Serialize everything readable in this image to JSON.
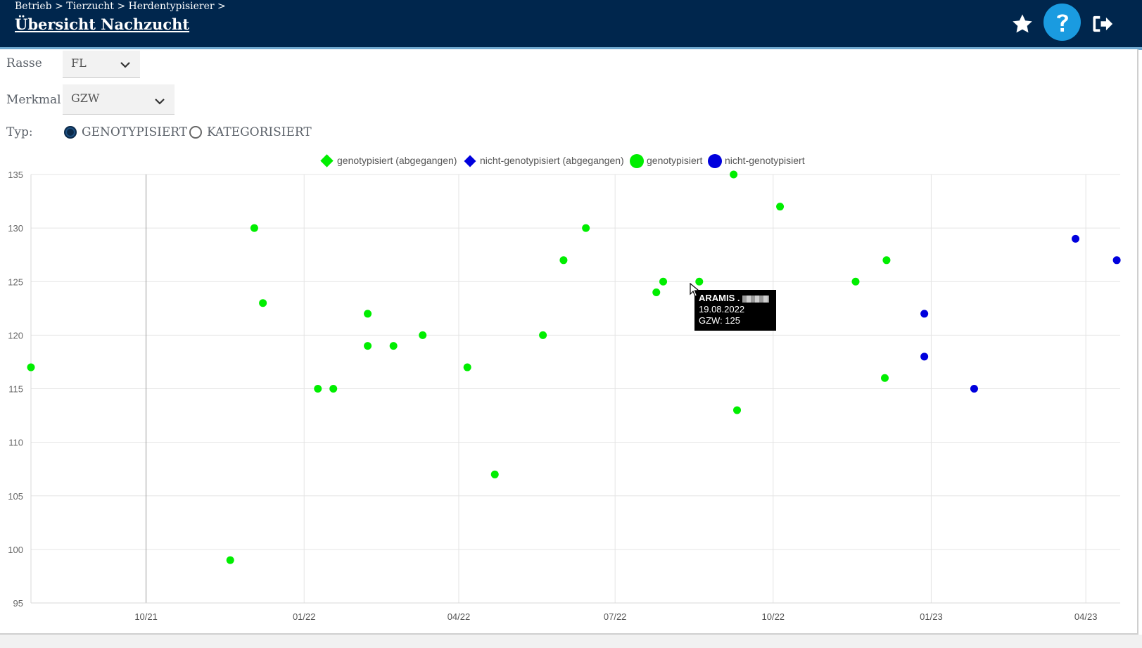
{
  "header": {
    "breadcrumb": "Betrieb > Tierzucht > Herdentypisierer >",
    "title": "Übersicht Nachzucht",
    "icons": [
      "star-icon",
      "help-icon",
      "logout-icon"
    ]
  },
  "filters": {
    "rasse_label": "Rasse",
    "rasse_value": "FL",
    "merkmal_label": "Merkmal",
    "merkmal_value": "GZW",
    "typ_label": "Typ:",
    "typ_options": [
      "GENOTYPISIERT",
      "KATEGORISIERT"
    ],
    "typ_selected": "GENOTYPISIERT"
  },
  "colors": {
    "header_bg": "#00264d",
    "genotyped": "#00ee00",
    "not_genotyped": "#0000dd",
    "radio_selected": "#0b2a4a"
  },
  "tooltip": {
    "name": "ARAMIS .",
    "date": "19.08.2022",
    "value_text": "GZW: 125"
  },
  "chart_data": {
    "type": "scatter",
    "title": "",
    "xlabel": "",
    "ylabel": "",
    "ylim": [
      95,
      135
    ],
    "xlim": [
      "2021-07-26",
      "2023-04-21"
    ],
    "yticks": [
      95,
      100,
      105,
      110,
      115,
      120,
      125,
      130,
      135
    ],
    "xticks": [
      {
        "date": "2021-10-01",
        "label": "10/21"
      },
      {
        "date": "2022-01-01",
        "label": "01/22"
      },
      {
        "date": "2022-04-01",
        "label": "04/22"
      },
      {
        "date": "2022-07-01",
        "label": "07/22"
      },
      {
        "date": "2022-10-01",
        "label": "10/22"
      },
      {
        "date": "2023-01-01",
        "label": "01/23"
      },
      {
        "date": "2023-04-01",
        "label": "04/23"
      }
    ],
    "grid": true,
    "legend_position": "top",
    "legend": [
      {
        "label": "genotypisiert (abgegangen)",
        "shape": "diamond",
        "color": "#00ee00"
      },
      {
        "label": "nicht-genotypisiert (abgegangen)",
        "shape": "diamond",
        "color": "#0000dd"
      },
      {
        "label": "genotypisiert",
        "shape": "circle",
        "color": "#00ee00"
      },
      {
        "label": "nicht-genotypisiert",
        "shape": "circle",
        "color": "#0000dd"
      }
    ],
    "series": [
      {
        "name": "genotypisiert (abgegangen)",
        "points": []
      },
      {
        "name": "nicht-genotypisiert (abgegangen)",
        "points": []
      },
      {
        "name": "genotypisiert",
        "points": [
          {
            "x": "2021-07-26",
            "y": 117
          },
          {
            "x": "2021-11-19",
            "y": 99
          },
          {
            "x": "2021-12-08",
            "y": 123
          },
          {
            "x": "2021-12-03",
            "y": 130
          },
          {
            "x": "2022-01-09",
            "y": 115
          },
          {
            "x": "2022-01-18",
            "y": 115
          },
          {
            "x": "2022-02-07",
            "y": 122
          },
          {
            "x": "2022-02-07",
            "y": 119
          },
          {
            "x": "2022-02-22",
            "y": 119
          },
          {
            "x": "2022-03-11",
            "y": 120
          },
          {
            "x": "2022-04-06",
            "y": 117
          },
          {
            "x": "2022-04-22",
            "y": 107
          },
          {
            "x": "2022-05-20",
            "y": 120
          },
          {
            "x": "2022-06-01",
            "y": 127
          },
          {
            "x": "2022-06-14",
            "y": 130
          },
          {
            "x": "2022-07-25",
            "y": 124
          },
          {
            "x": "2022-07-29",
            "y": 125
          },
          {
            "x": "2022-08-19",
            "y": 125
          },
          {
            "x": "2022-09-08",
            "y": 135
          },
          {
            "x": "2022-09-10",
            "y": 113
          },
          {
            "x": "2022-10-05",
            "y": 132
          },
          {
            "x": "2022-11-18",
            "y": 125
          },
          {
            "x": "2022-12-05",
            "y": 116
          },
          {
            "x": "2022-12-06",
            "y": 127
          }
        ]
      },
      {
        "name": "nicht-genotypisiert",
        "points": [
          {
            "x": "2022-12-28",
            "y": 122
          },
          {
            "x": "2022-12-28",
            "y": 118
          },
          {
            "x": "2023-01-26",
            "y": 115
          },
          {
            "x": "2023-03-26",
            "y": 129
          },
          {
            "x": "2023-04-19",
            "y": 127
          }
        ]
      }
    ]
  }
}
